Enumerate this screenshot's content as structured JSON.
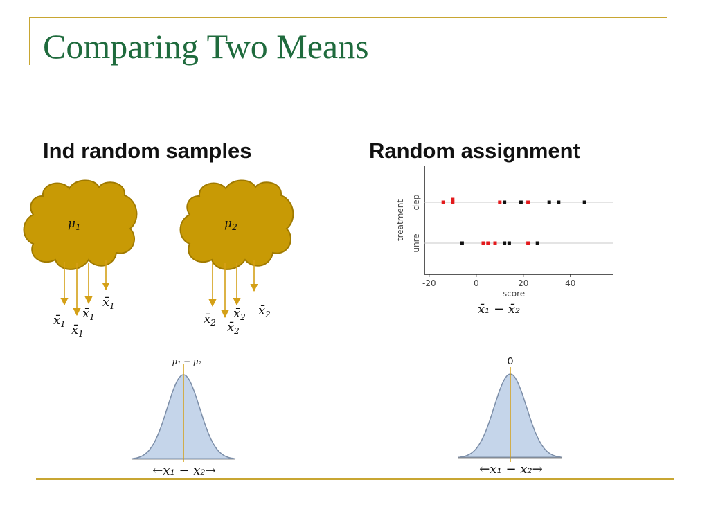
{
  "slide": {
    "title": "Comparing Two Means",
    "left_heading": "Ind random samples",
    "right_heading": "Random assignment"
  },
  "populations": [
    {
      "mean": "μ",
      "mean_sub": "1",
      "sample_label": "x̄",
      "sample_sub": "1"
    },
    {
      "mean": "μ",
      "mean_sub": "2",
      "sample_label": "x̄",
      "sample_sub": "2"
    }
  ],
  "left_distribution": {
    "center_label": "μ₁ − μ₂",
    "axis_label": "←x₁ − x₂→"
  },
  "right_distribution": {
    "center_label": "0",
    "axis_label": "←x₁ − x₂→"
  },
  "right_stat_label": "x̄₁ − x̄₂",
  "colors": {
    "title": "#1f6b3d",
    "rule": "#c8a632",
    "cloud_fill": "#c89a05",
    "cloud_stroke": "#a07a00",
    "arrow": "#d4a017",
    "curve_fill": "#c5d5ea",
    "curve_stroke": "#7c8ea8",
    "center_line": "#d4a017",
    "dot_red": "#e31a1c",
    "dot_black": "#111111"
  },
  "chart_data": {
    "type": "scatter",
    "xlabel": "score",
    "ylabel": "treatment",
    "xlim": [
      -22,
      58
    ],
    "xticks": [
      -20,
      0,
      20,
      40
    ],
    "xtick_labels": [
      "-20",
      "0",
      "20",
      "40"
    ],
    "categories": [
      "dep",
      "unre"
    ],
    "grid": true,
    "series": [
      {
        "color": "#e31a1c",
        "points": [
          {
            "category": "dep",
            "x": -14
          },
          {
            "category": "dep",
            "x": -10
          },
          {
            "category": "dep",
            "x": -10
          },
          {
            "category": "dep",
            "x": 10
          },
          {
            "category": "dep",
            "x": 22
          },
          {
            "category": "unre",
            "x": 3
          },
          {
            "category": "unre",
            "x": 5
          },
          {
            "category": "unre",
            "x": 8
          },
          {
            "category": "unre",
            "x": 22
          }
        ]
      },
      {
        "color": "#111111",
        "points": [
          {
            "category": "dep",
            "x": 12
          },
          {
            "category": "dep",
            "x": 19
          },
          {
            "category": "dep",
            "x": 31
          },
          {
            "category": "dep",
            "x": 35
          },
          {
            "category": "dep",
            "x": 46
          },
          {
            "category": "unre",
            "x": -6
          },
          {
            "category": "unre",
            "x": 12
          },
          {
            "category": "unre",
            "x": 14
          },
          {
            "category": "unre",
            "x": 26
          }
        ]
      }
    ]
  }
}
